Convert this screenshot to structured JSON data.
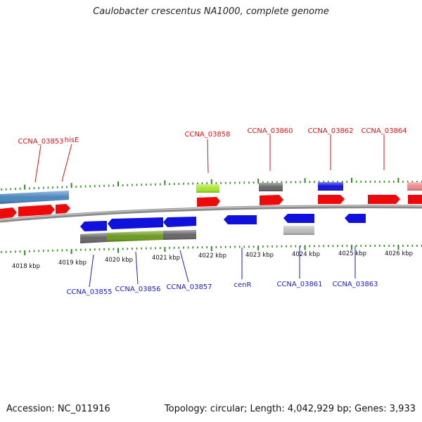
{
  "title": "Caulobacter crescentus NA1000, complete genome",
  "footer": {
    "accession": "Accession: NC_011916",
    "topology": "Topology: circular; Length: 4,042,929 bp; Genes: 3,933"
  },
  "colors": {
    "forward_label": "#dd1111",
    "reverse_label": "#1a1acc",
    "tick": "#2e8b20",
    "backbone": "#888888"
  },
  "kbp_labels": [
    "4018 kbp",
    "4019 kbp",
    "4020 kbp",
    "4021 kbp",
    "4022 kbp",
    "4023 kbp",
    "4024 kbp",
    "4025 kbp",
    "4026 kbp"
  ],
  "forward_labels": [
    "CCNA_03853",
    "hisE",
    "CCNA_03858",
    "CCNA_03860",
    "CCNA_03862",
    "CCNA_03864"
  ],
  "reverse_labels": [
    "CCNA_03855",
    "CCNA_03856",
    "CCNA_03857",
    "cenR",
    "CCNA_03861",
    "CCNA_03863"
  ]
}
